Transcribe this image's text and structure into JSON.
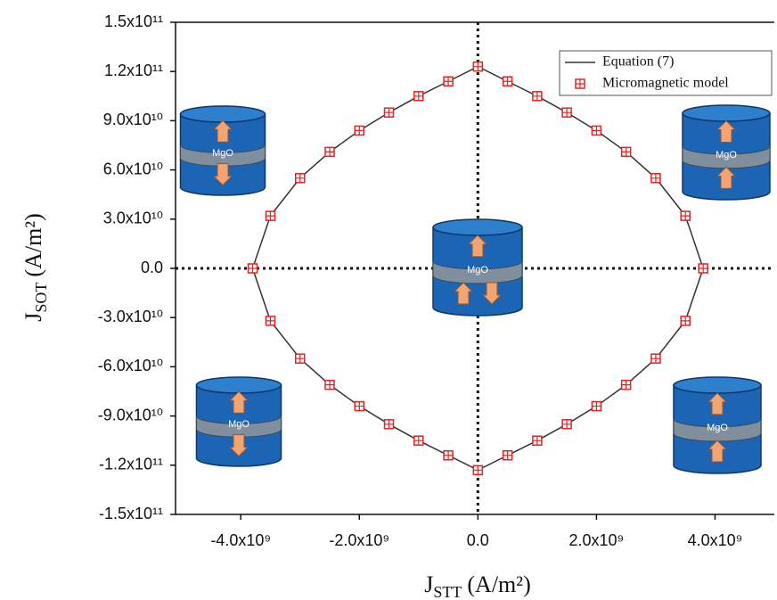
{
  "chart_data": {
    "type": "scatter",
    "x_label": {
      "symbol": "J",
      "subscript": "STT",
      "unit": "(A/m²)"
    },
    "y_label": {
      "symbol": "J",
      "subscript": "SOT",
      "unit": "(A/m²)"
    },
    "xlim": [
      -5100000000.0,
      5000000000.0
    ],
    "ylim": [
      -150000000000.0,
      150000000000.0
    ],
    "xticks": [
      {
        "value": -4000000000.0,
        "label": "-4.0x10⁹"
      },
      {
        "value": -2000000000.0,
        "label": "-2.0x10⁹"
      },
      {
        "value": 0,
        "label": "0.0"
      },
      {
        "value": 2000000000.0,
        "label": "2.0x10⁹"
      },
      {
        "value": 4000000000.0,
        "label": "4.0x10⁹"
      }
    ],
    "yticks": [
      {
        "value": 150000000000.0,
        "label": "1.5x10¹¹"
      },
      {
        "value": 120000000000.0,
        "label": "1.2x10¹¹"
      },
      {
        "value": 90000000000.0,
        "label": "9.0x10¹⁰"
      },
      {
        "value": 60000000000.0,
        "label": "6.0x10¹⁰"
      },
      {
        "value": 30000000000.0,
        "label": "3.0x10¹⁰"
      },
      {
        "value": 0,
        "label": "0.0"
      },
      {
        "value": -30000000000.0,
        "label": "-3.0x10¹⁰"
      },
      {
        "value": -60000000000.0,
        "label": "-6.0x10¹⁰"
      },
      {
        "value": -90000000000.0,
        "label": "-9.0x10¹⁰"
      },
      {
        "value": -120000000000.0,
        "label": "-1.2x10¹¹"
      },
      {
        "value": -150000000000.0,
        "label": "-1.5x10¹¹"
      }
    ],
    "legend": "upper right",
    "series": [
      {
        "name": "Equation (7)",
        "style": "line",
        "color": "#333333",
        "x": [
          -3800000000.0,
          -3500000000.0,
          -3000000000.0,
          -2500000000.0,
          -2000000000.0,
          -1500000000.0,
          -1000000000.0,
          -500000000.0,
          0,
          500000000.0,
          1000000000.0,
          1500000000.0,
          2000000000.0,
          2500000000.0,
          3000000000.0,
          3500000000.0,
          3800000000.0,
          3500000000.0,
          3000000000.0,
          2500000000.0,
          2000000000.0,
          1500000000.0,
          1000000000.0,
          500000000.0,
          0,
          -500000000.0,
          -1000000000.0,
          -1500000000.0,
          -2000000000.0,
          -2500000000.0,
          -3000000000.0,
          -3500000000.0,
          -3800000000.0
        ],
        "y": [
          0,
          32000000000.0,
          55000000000.0,
          71000000000.0,
          84000000000.0,
          95000000000.0,
          105000000000.0,
          114000000000.0,
          123000000000.0,
          114000000000.0,
          105000000000.0,
          95000000000.0,
          84000000000.0,
          71000000000.0,
          55000000000.0,
          32000000000.0,
          0,
          -32000000000.0,
          -55000000000.0,
          -71000000000.0,
          -84000000000.0,
          -95000000000.0,
          -105000000000.0,
          -114000000000.0,
          -123000000000.0,
          -114000000000.0,
          -105000000000.0,
          -95000000000.0,
          -84000000000.0,
          -71000000000.0,
          -55000000000.0,
          -32000000000.0,
          0
        ]
      },
      {
        "name": "Micromagnetic model",
        "style": "marker",
        "color": "#e02424",
        "x": [
          -3800000000.0,
          -3500000000.0,
          -3000000000.0,
          -2500000000.0,
          -2000000000.0,
          -1500000000.0,
          -1000000000.0,
          -500000000.0,
          0,
          500000000.0,
          1000000000.0,
          1500000000.0,
          2000000000.0,
          2500000000.0,
          3000000000.0,
          3500000000.0,
          3800000000.0,
          3500000000.0,
          3000000000.0,
          2500000000.0,
          2000000000.0,
          1500000000.0,
          1000000000.0,
          500000000.0,
          0,
          -500000000.0,
          -1000000000.0,
          -1500000000.0,
          -2000000000.0,
          -2500000000.0,
          -3000000000.0,
          -3500000000.0
        ],
        "y": [
          0,
          32000000000.0,
          55000000000.0,
          71000000000.0,
          84000000000.0,
          95000000000.0,
          105000000000.0,
          114000000000.0,
          123000000000.0,
          114000000000.0,
          105000000000.0,
          95000000000.0,
          84000000000.0,
          71000000000.0,
          55000000000.0,
          32000000000.0,
          0,
          -32000000000.0,
          -55000000000.0,
          -71000000000.0,
          -84000000000.0,
          -95000000000.0,
          -105000000000.0,
          -114000000000.0,
          -123000000000.0,
          -114000000000.0,
          -105000000000.0,
          -95000000000.0,
          -84000000000.0,
          -71000000000.0,
          -55000000000.0,
          -32000000000.0
        ]
      }
    ],
    "icons": [
      {
        "label": "MgO"
      },
      {
        "label": "MgO"
      },
      {
        "label": "MgO"
      },
      {
        "label": "MgO"
      },
      {
        "label": "MgO"
      }
    ]
  }
}
